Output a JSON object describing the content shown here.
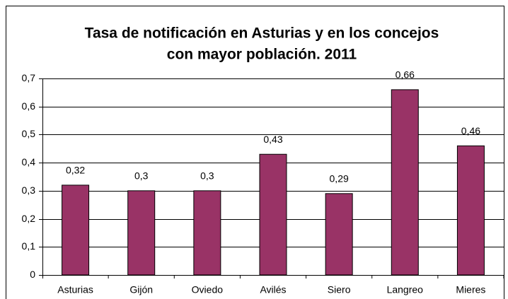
{
  "chart_data": {
    "type": "bar",
    "title": [
      "Tasa de notificación en Asturias y en los concejos",
      "con mayor población. 2011"
    ],
    "categories": [
      "Asturias",
      "Gijón",
      "Oviedo",
      "Avilés",
      "Siero",
      "Langreo",
      "Mieres"
    ],
    "values": [
      0.32,
      0.3,
      0.3,
      0.43,
      0.29,
      0.66,
      0.46
    ],
    "value_labels": [
      "0,32",
      "0,3",
      "0,3",
      "0,43",
      "0,29",
      "0,66",
      "0,46"
    ],
    "color": "#993366",
    "ylim": [
      0,
      0.7
    ],
    "yticks": [
      0,
      {
        "value": 0.1,
        "label": "0,1"
      },
      {
        "value": 0.2,
        "label": "0,2"
      },
      {
        "value": 0.3,
        "label": "0,3"
      },
      {
        "value": 0.4,
        "label": "0,4"
      },
      {
        "value": 0.5,
        "label": "0,5"
      },
      {
        "value": 0.6,
        "label": "0,6"
      },
      {
        "value": 0.7,
        "label": "0,7"
      }
    ],
    "grid": true
  }
}
